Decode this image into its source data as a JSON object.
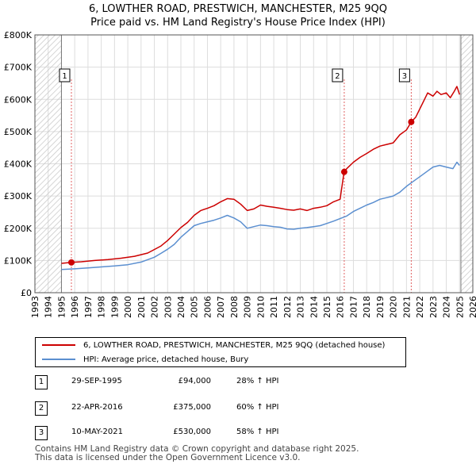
{
  "title": {
    "line1": "6, LOWTHER ROAD, PRESTWICH, MANCHESTER, M25 9QQ",
    "line2": "Price paid vs. HM Land Registry's House Price Index (HPI)"
  },
  "colors": {
    "property": "#cc0000",
    "hpi": "#5b8fd0",
    "hatch": "#c8c8c8",
    "grid": "#dddddd",
    "sale_vline": "#e06060"
  },
  "chart_data": {
    "type": "line",
    "xlim": [
      1993,
      2026
    ],
    "ylim": [
      0,
      800000
    ],
    "yticks": [
      {
        "value": 0,
        "label": "£0"
      },
      {
        "value": 100000,
        "label": "£100K"
      },
      {
        "value": 200000,
        "label": "£200K"
      },
      {
        "value": 300000,
        "label": "£300K"
      },
      {
        "value": 400000,
        "label": "£400K"
      },
      {
        "value": 500000,
        "label": "£500K"
      },
      {
        "value": 600000,
        "label": "£600K"
      },
      {
        "value": 700000,
        "label": "£700K"
      },
      {
        "value": 800000,
        "label": "£800K"
      }
    ],
    "xticks": [
      1993,
      1994,
      1995,
      1996,
      1997,
      1998,
      1999,
      2000,
      2001,
      2002,
      2003,
      2004,
      2005,
      2006,
      2007,
      2008,
      2009,
      2010,
      2011,
      2012,
      2013,
      2014,
      2015,
      2016,
      2017,
      2018,
      2019,
      2020,
      2021,
      2022,
      2023,
      2024,
      2025,
      2026
    ],
    "hatched_ranges": [
      [
        1993,
        1995.0
      ],
      [
        2025.1,
        2026
      ]
    ],
    "series": [
      {
        "name": "6, LOWTHER ROAD, PRESTWICH, MANCHESTER, M25 9QQ (detached house)",
        "color": "#cc0000",
        "x": [
          1995.0,
          1995.75,
          1996.5,
          1997.5,
          1998.5,
          1999.5,
          2000.5,
          2001.5,
          2002.5,
          2003.0,
          2003.5,
          2004.0,
          2004.5,
          2005.0,
          2005.5,
          2006.0,
          2006.5,
          2007.0,
          2007.5,
          2008.0,
          2008.5,
          2009.0,
          2009.5,
          2010.0,
          2010.5,
          2011.0,
          2011.5,
          2012.0,
          2012.5,
          2013.0,
          2013.5,
          2014.0,
          2014.5,
          2015.0,
          2015.5,
          2016.0,
          2016.3,
          2016.5,
          2017.0,
          2017.5,
          2018.0,
          2018.5,
          2019.0,
          2019.5,
          2020.0,
          2020.5,
          2021.0,
          2021.36,
          2021.7,
          2022.0,
          2022.3,
          2022.6,
          2022.8,
          2023.0,
          2023.3,
          2023.6,
          2024.0,
          2024.3,
          2024.6,
          2024.8,
          2025.0
        ],
        "y": [
          91000,
          94000,
          96000,
          100000,
          103000,
          107000,
          113000,
          123000,
          145000,
          162000,
          182000,
          202000,
          218000,
          240000,
          255000,
          262000,
          270000,
          282000,
          292000,
          290000,
          275000,
          255000,
          260000,
          272000,
          268000,
          265000,
          262000,
          258000,
          256000,
          260000,
          255000,
          262000,
          265000,
          270000,
          282000,
          290000,
          375000,
          385000,
          405000,
          420000,
          432000,
          445000,
          455000,
          460000,
          465000,
          490000,
          505000,
          530000,
          545000,
          570000,
          595000,
          620000,
          615000,
          610000,
          625000,
          615000,
          620000,
          605000,
          625000,
          640000,
          615000
        ]
      },
      {
        "name": "HPI: Average price, detached house, Bury",
        "color": "#5b8fd0",
        "x": [
          1995.0,
          1996.0,
          1997.0,
          1998.0,
          1999.0,
          2000.0,
          2001.0,
          2002.0,
          2002.5,
          2003.0,
          2003.5,
          2004.0,
          2004.5,
          2005.0,
          2005.5,
          2006.0,
          2006.5,
          2007.0,
          2007.5,
          2008.0,
          2008.5,
          2009.0,
          2009.5,
          2010.0,
          2010.5,
          2011.0,
          2011.5,
          2012.0,
          2012.5,
          2013.0,
          2013.5,
          2014.0,
          2014.5,
          2015.0,
          2015.5,
          2016.0,
          2016.5,
          2017.0,
          2017.5,
          2018.0,
          2018.5,
          2019.0,
          2019.5,
          2020.0,
          2020.5,
          2021.0,
          2021.5,
          2022.0,
          2022.5,
          2023.0,
          2023.5,
          2024.0,
          2024.5,
          2024.8,
          2025.0
        ],
        "y": [
          72000,
          74000,
          77000,
          80000,
          83000,
          87000,
          95000,
          110000,
          122000,
          135000,
          150000,
          172000,
          190000,
          208000,
          215000,
          220000,
          225000,
          232000,
          240000,
          232000,
          220000,
          200000,
          205000,
          210000,
          208000,
          205000,
          203000,
          198000,
          197000,
          200000,
          202000,
          205000,
          208000,
          215000,
          222000,
          230000,
          238000,
          252000,
          262000,
          272000,
          280000,
          290000,
          295000,
          300000,
          312000,
          330000,
          345000,
          360000,
          375000,
          390000,
          395000,
          390000,
          385000,
          405000,
          395000
        ]
      }
    ],
    "sales": [
      {
        "label": "1",
        "x": 1995.75,
        "y": 94000
      },
      {
        "label": "2",
        "x": 2016.31,
        "y": 375000
      },
      {
        "label": "3",
        "x": 2021.36,
        "y": 530000
      }
    ]
  },
  "legend": {
    "property": "6, LOWTHER ROAD, PRESTWICH, MANCHESTER, M25 9QQ (detached house)",
    "hpi": "HPI: Average price, detached house, Bury"
  },
  "sales_table": [
    {
      "num": "1",
      "date": "29-SEP-1995",
      "price": "£94,000",
      "hpi": "28% ↑ HPI"
    },
    {
      "num": "2",
      "date": "22-APR-2016",
      "price": "£375,000",
      "hpi": "60% ↑ HPI"
    },
    {
      "num": "3",
      "date": "10-MAY-2021",
      "price": "£530,000",
      "hpi": "58% ↑ HPI"
    }
  ],
  "footer": {
    "line1": "Contains HM Land Registry data © Crown copyright and database right 2025.",
    "line2": "This data is licensed under the Open Government Licence v3.0."
  }
}
